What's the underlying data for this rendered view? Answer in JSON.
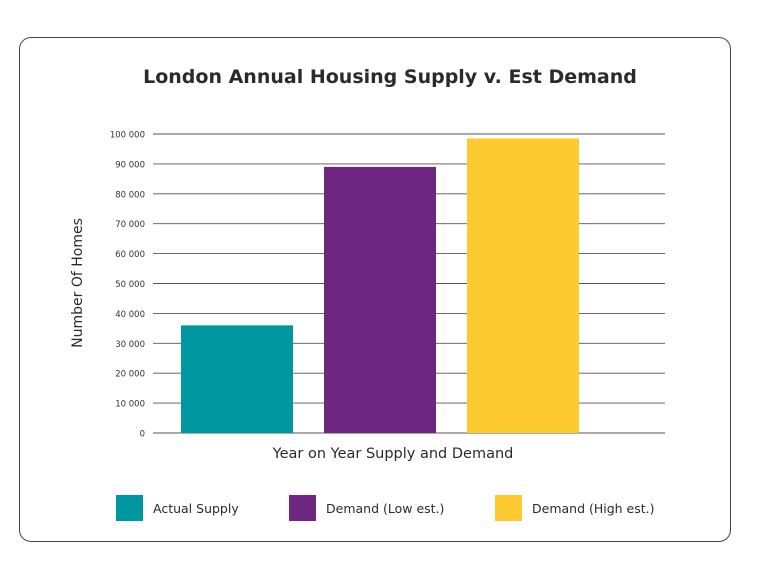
{
  "chart_data": {
    "type": "bar",
    "title": "London Annual Housing Supply v. Est Demand",
    "xlabel": "Year on Year Supply and Demand",
    "ylabel": "Number Of Homes",
    "ylim": [
      0,
      100000
    ],
    "yticks": [
      "0",
      "10 000",
      "20 000",
      "30 000",
      "40 000",
      "50 000",
      "60 000",
      "70 000",
      "80 000",
      "90 000",
      "100 000"
    ],
    "grid": true,
    "legend_position": "bottom",
    "categories": [
      "Actual Supply",
      "Demand (Low est.)",
      "Demand (High est.)"
    ],
    "values": [
      36000,
      89000,
      98500
    ],
    "colors": [
      "#0097a0",
      "#6e2780",
      "#fdcb30"
    ]
  }
}
